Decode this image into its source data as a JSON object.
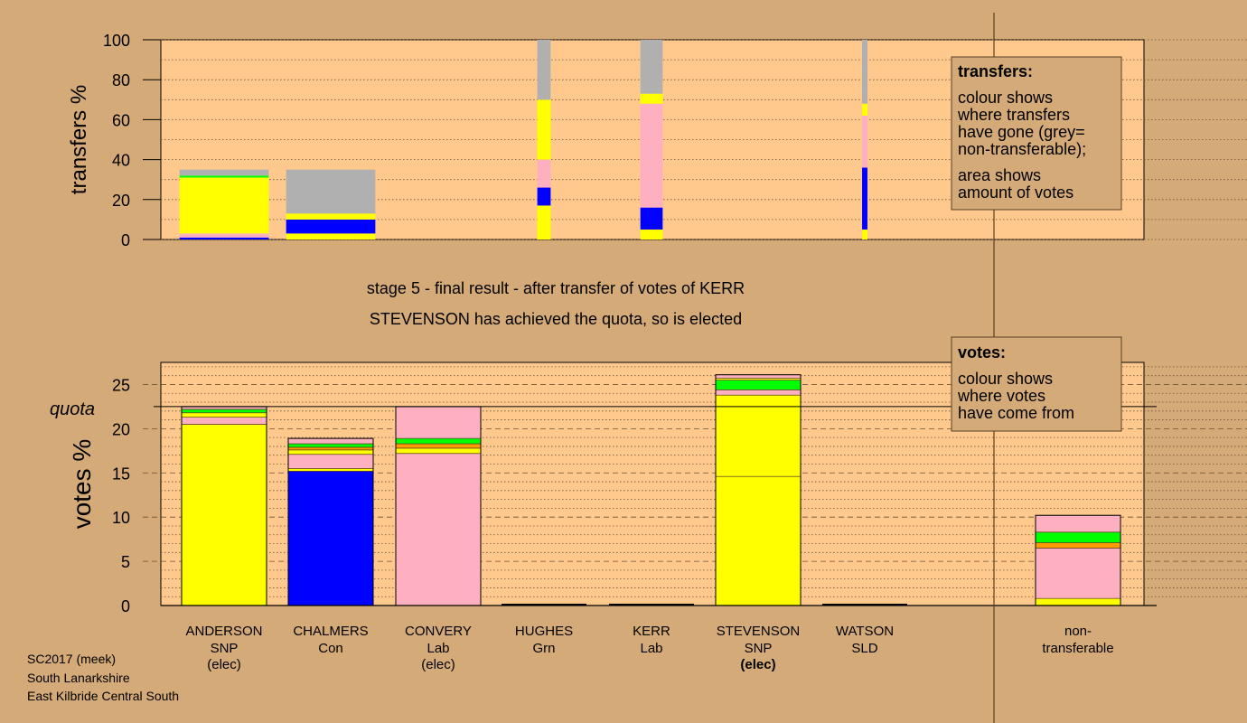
{
  "stage": {
    "line1": "stage 5 - final result - after transfer of votes of KERR",
    "line2": "STEVENSON has achieved the quota, so is elected"
  },
  "legend_transfers": {
    "title": "transfers:",
    "lines": [
      "colour shows",
      "where transfers",
      "have gone (grey=",
      "non-transferable);",
      "area shows",
      "amount of votes"
    ]
  },
  "legend_votes": {
    "title": "votes:",
    "lines": [
      "colour shows",
      "where votes",
      "have come from"
    ]
  },
  "footer": [
    "SC2017 (meek)",
    "South Lanarkshire",
    "East Kilbride Central South"
  ],
  "colors": {
    "background": "#d4aa78",
    "plot_bg": "#ffc98e",
    "SNP": "#ffff00",
    "Con": "#0000ff",
    "Lab": "#ffb0c0",
    "Grn": "#00ff00",
    "SLD": "#ff9a00",
    "nontransferable": "#b0b0b0"
  },
  "candidates": [
    {
      "name": "ANDERSON",
      "party": "SNP",
      "status": "(elec)",
      "status_bold": false
    },
    {
      "name": "CHALMERS",
      "party": "Con",
      "status": "",
      "status_bold": false
    },
    {
      "name": "CONVERY",
      "party": "Lab",
      "status": "(elec)",
      "status_bold": false
    },
    {
      "name": "HUGHES",
      "party": "Grn",
      "status": "",
      "status_bold": false
    },
    {
      "name": "KERR",
      "party": "Lab",
      "status": "",
      "status_bold": false
    },
    {
      "name": "STEVENSON",
      "party": "SNP",
      "status": "(elec)",
      "status_bold": true
    },
    {
      "name": "WATSON",
      "party": "SLD",
      "status": "",
      "status_bold": false
    },
    {
      "name": "non-",
      "party": "transferable",
      "status": "",
      "status_bold": false
    }
  ],
  "chart_data": [
    {
      "type": "bar",
      "subtype": "stacked-variable-width",
      "ylabel": "transfers %",
      "ylim": [
        0,
        100
      ],
      "yticks": [
        0,
        20,
        40,
        60,
        80,
        100
      ],
      "bars": [
        {
          "candidate": "ANDERSON",
          "width_share": 1.0,
          "segments": [
            {
              "party": "Con",
              "from": 0,
              "to": 1
            },
            {
              "party": "Lab",
              "from": 1,
              "to": 3
            },
            {
              "party": "SNP",
              "from": 3,
              "to": 31
            },
            {
              "party": "Grn",
              "from": 31,
              "to": 32
            },
            {
              "party": "nontransferable",
              "from": 32,
              "to": 35
            }
          ]
        },
        {
          "candidate": "CHALMERS",
          "width_share": 1.0,
          "segments": [
            {
              "party": "SNP",
              "from": 0,
              "to": 3
            },
            {
              "party": "Con",
              "from": 3,
              "to": 10
            },
            {
              "party": "SNP",
              "from": 10,
              "to": 13
            },
            {
              "party": "nontransferable",
              "from": 13,
              "to": 35
            }
          ]
        },
        {
          "candidate": "HUGHES",
          "width_share": 0.15,
          "segments": [
            {
              "party": "SNP",
              "from": 0,
              "to": 17
            },
            {
              "party": "Con",
              "from": 17,
              "to": 26
            },
            {
              "party": "Lab",
              "from": 26,
              "to": 40
            },
            {
              "party": "SNP",
              "from": 40,
              "to": 70
            },
            {
              "party": "nontransferable",
              "from": 70,
              "to": 100
            }
          ]
        },
        {
          "candidate": "KERR",
          "width_share": 0.25,
          "segments": [
            {
              "party": "SNP",
              "from": 0,
              "to": 5
            },
            {
              "party": "Con",
              "from": 5,
              "to": 16
            },
            {
              "party": "Lab",
              "from": 16,
              "to": 68
            },
            {
              "party": "SNP",
              "from": 68,
              "to": 73
            },
            {
              "party": "nontransferable",
              "from": 73,
              "to": 100
            }
          ]
        },
        {
          "candidate": "WATSON",
          "width_share": 0.06,
          "segments": [
            {
              "party": "SNP",
              "from": 0,
              "to": 5
            },
            {
              "party": "Con",
              "from": 5,
              "to": 36
            },
            {
              "party": "Lab",
              "from": 36,
              "to": 62
            },
            {
              "party": "SNP",
              "from": 62,
              "to": 68
            },
            {
              "party": "nontransferable",
              "from": 68,
              "to": 100
            }
          ]
        }
      ]
    },
    {
      "type": "bar",
      "subtype": "stacked",
      "ylabel": "votes %",
      "ylim": [
        0,
        27.5
      ],
      "yticks": [
        0,
        5,
        10,
        15,
        20,
        25
      ],
      "quota": 22.5,
      "quota_label": "quota",
      "bars": [
        {
          "candidate": "ANDERSON",
          "segments": [
            {
              "party": "SNP",
              "from": 0,
              "to": 20.5
            },
            {
              "party": "Lab",
              "from": 20.5,
              "to": 21.3
            },
            {
              "party": "SNP",
              "from": 21.3,
              "to": 21.8
            },
            {
              "party": "Grn",
              "from": 21.8,
              "to": 22.2
            },
            {
              "party": "Lab",
              "from": 22.2,
              "to": 22.5
            }
          ]
        },
        {
          "candidate": "CHALMERS",
          "segments": [
            {
              "party": "Con",
              "from": 0,
              "to": 15.2
            },
            {
              "party": "SNP",
              "from": 15.2,
              "to": 15.5
            },
            {
              "party": "Lab",
              "from": 15.5,
              "to": 17.1
            },
            {
              "party": "SNP",
              "from": 17.1,
              "to": 17.6
            },
            {
              "party": "SLD",
              "from": 17.6,
              "to": 17.9
            },
            {
              "party": "Grn",
              "from": 17.9,
              "to": 18.3
            },
            {
              "party": "Lab",
              "from": 18.3,
              "to": 18.9
            }
          ]
        },
        {
          "candidate": "CONVERY",
          "segments": [
            {
              "party": "Lab",
              "from": 0,
              "to": 17.2
            },
            {
              "party": "SNP",
              "from": 17.2,
              "to": 17.8
            },
            {
              "party": "SLD",
              "from": 17.8,
              "to": 18.3
            },
            {
              "party": "Grn",
              "from": 18.3,
              "to": 18.9
            },
            {
              "party": "Lab",
              "from": 18.9,
              "to": 22.5
            }
          ]
        },
        {
          "candidate": "HUGHES",
          "segments": []
        },
        {
          "candidate": "KERR",
          "segments": []
        },
        {
          "candidate": "STEVENSON",
          "segments": [
            {
              "party": "SNP",
              "from": 0,
              "to": 14.6
            },
            {
              "party": "SNP",
              "from": 14.6,
              "to": 23.8
            },
            {
              "party": "Lab",
              "from": 23.8,
              "to": 24.4
            },
            {
              "party": "Grn",
              "from": 24.4,
              "to": 25.5
            },
            {
              "party": "SNP",
              "from": 25.5,
              "to": 25.7
            },
            {
              "party": "Lab",
              "from": 25.7,
              "to": 26.1
            }
          ]
        },
        {
          "candidate": "WATSON",
          "segments": []
        },
        {
          "candidate": "non-transferable",
          "segments": [
            {
              "party": "SNP",
              "from": 0,
              "to": 0.8
            },
            {
              "party": "Lab",
              "from": 0.8,
              "to": 6.5
            },
            {
              "party": "SLD",
              "from": 6.5,
              "to": 7.1
            },
            {
              "party": "Grn",
              "from": 7.1,
              "to": 8.3
            },
            {
              "party": "Lab",
              "from": 8.3,
              "to": 10.2
            }
          ]
        }
      ]
    }
  ]
}
